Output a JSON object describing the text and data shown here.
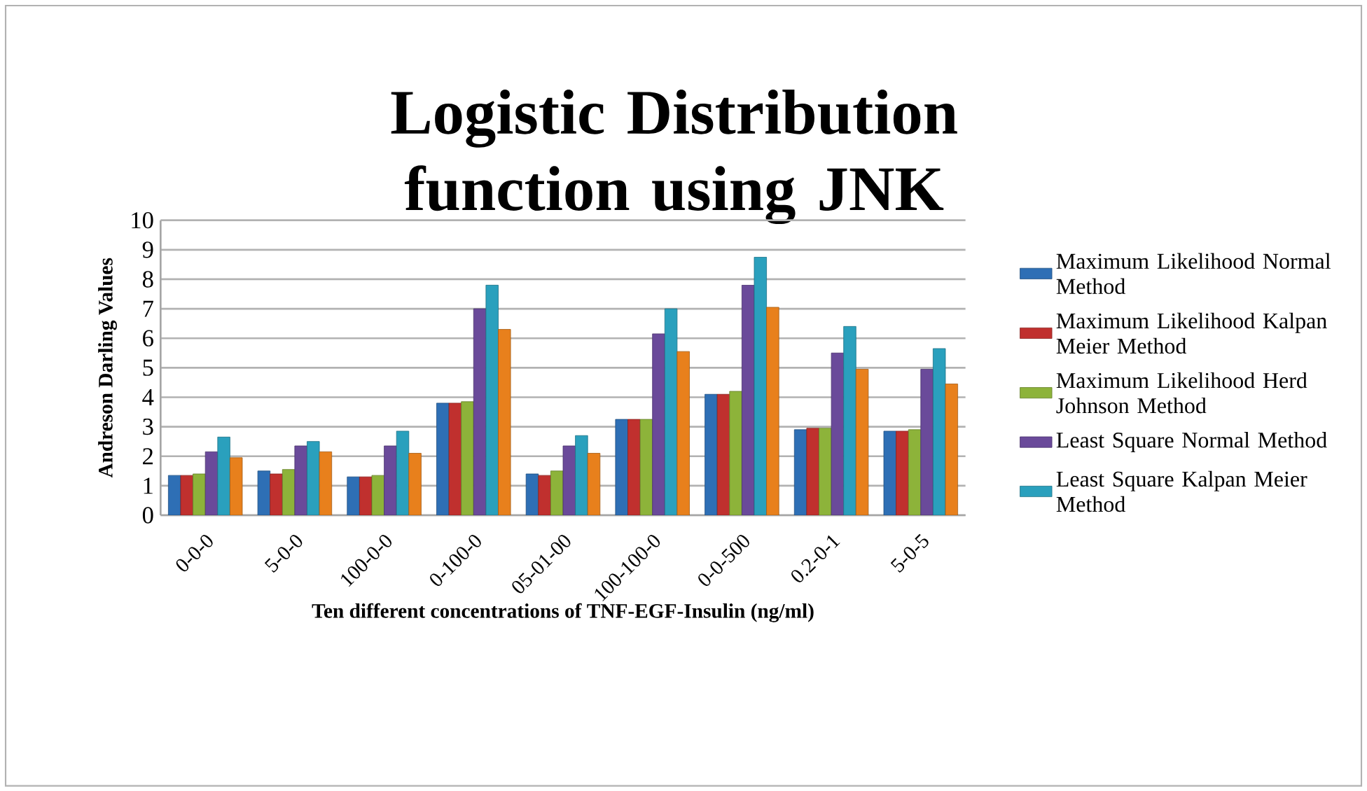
{
  "chart_data": {
    "type": "bar",
    "title": "Logistic Distribution function using JNK",
    "xlabel": "Ten different concentrations of TNF-EGF-Insulin (ng/ml)",
    "ylabel": "Andreson Darling Values",
    "categories": [
      "0-0-0",
      "5-0-0",
      "100-0-0",
      "0-100-0",
      "05-01-00",
      "100-100-0",
      "0-0-500",
      "0.2-0-1",
      "5-0-5"
    ],
    "series": [
      {
        "name": "Maximum Likelihood Normal Method",
        "color": "#2e6fb5",
        "values": [
          1.35,
          1.5,
          1.3,
          3.8,
          1.4,
          3.25,
          4.1,
          2.9,
          2.85
        ]
      },
      {
        "name": "Maximum Likelihood Kalpan Meier Method",
        "color": "#c0302e",
        "values": [
          1.35,
          1.4,
          1.3,
          3.8,
          1.35,
          3.25,
          4.1,
          2.95,
          2.85
        ]
      },
      {
        "name": "Maximum Likelihood Herd Johnson Method",
        "color": "#8db33a",
        "values": [
          1.4,
          1.55,
          1.35,
          3.85,
          1.5,
          3.25,
          4.2,
          2.95,
          2.9
        ]
      },
      {
        "name": "Least Square Normal Method",
        "color": "#6a4a9a",
        "values": [
          2.15,
          2.35,
          2.35,
          7.0,
          2.35,
          6.15,
          7.8,
          5.5,
          4.95
        ]
      },
      {
        "name": "Least Square Kalpan Meier Method",
        "color": "#2aa0bd",
        "values": [
          2.65,
          2.5,
          2.85,
          7.8,
          2.7,
          7.0,
          8.75,
          6.4,
          5.65
        ]
      },
      {
        "color": "#e8801c",
        "values": [
          1.95,
          2.15,
          2.1,
          6.3,
          2.1,
          5.55,
          7.05,
          4.95,
          4.45
        ]
      }
    ],
    "ylim": [
      0,
      10
    ],
    "yticks": [
      0,
      1,
      2,
      3,
      4,
      5,
      6,
      7,
      8,
      9,
      10
    ],
    "grid": "y",
    "legend": "right"
  }
}
